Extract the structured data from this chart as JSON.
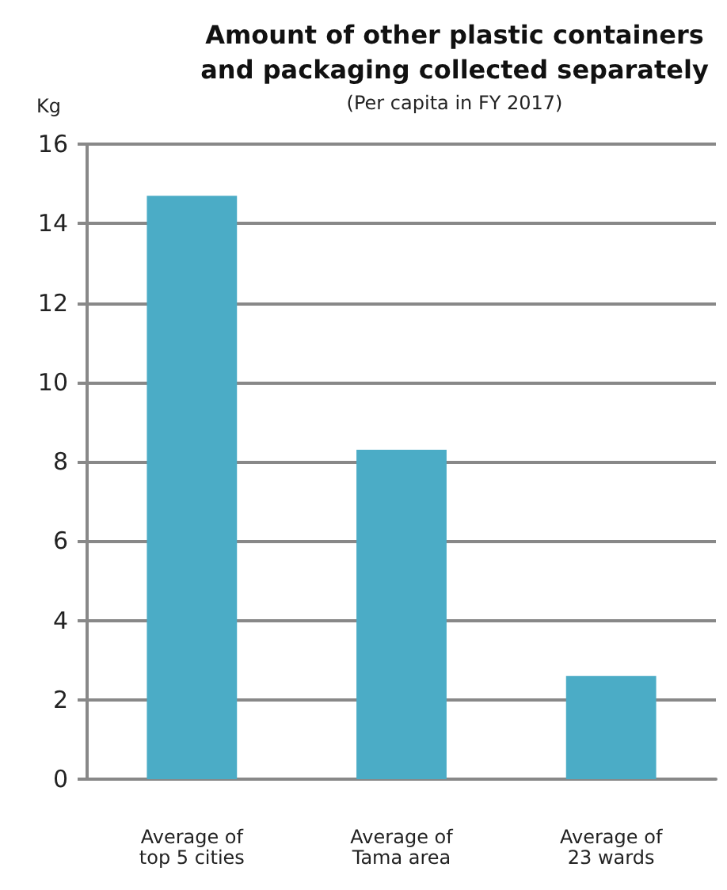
{
  "chart_data": {
    "type": "bar",
    "title": "Amount of other plastic containers\nand packaging collected separately",
    "subtitle": "(Per capita in FY 2017)",
    "ylabel": "Kg",
    "categories": [
      "Average of\ntop 5 cities",
      "Average of\nTama area",
      "Average of\n23 wards"
    ],
    "values": [
      14.7,
      8.3,
      2.6
    ],
    "color": "#4bacc6",
    "ylim": [
      0,
      16
    ],
    "yticks": [
      0,
      2,
      4,
      6,
      8,
      10,
      12,
      14,
      16
    ],
    "grid": "y"
  }
}
